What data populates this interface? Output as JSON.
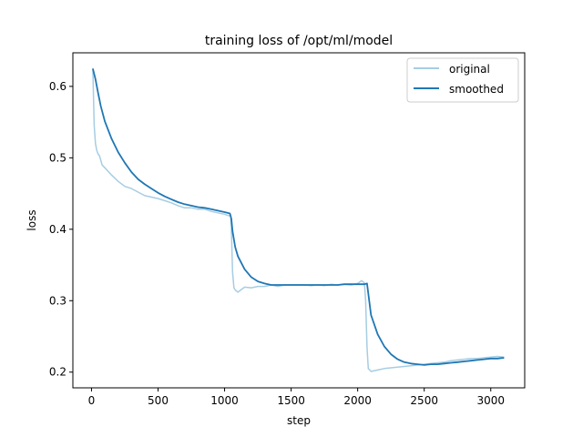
{
  "chart_data": {
    "type": "line",
    "title": "training loss of /opt/ml/model",
    "xlabel": "step",
    "ylabel": "loss",
    "xlim": [
      -140,
      3255
    ],
    "ylim": [
      0.178,
      0.647
    ],
    "xticks": [
      0,
      500,
      1000,
      1500,
      2000,
      2500,
      3000
    ],
    "yticks": [
      0.2,
      0.3,
      0.4,
      0.5,
      0.6
    ],
    "yticks_labels": [
      "0.2",
      "0.3",
      "0.4",
      "0.5",
      "0.6"
    ],
    "legend": {
      "placement": "top-right"
    },
    "grid": false,
    "series": [
      {
        "name": "original",
        "color": "#a6cde3",
        "x": [
          10,
          20,
          30,
          40,
          50,
          60,
          80,
          100,
          150,
          200,
          250,
          300,
          350,
          400,
          450,
          500,
          550,
          600,
          650,
          700,
          750,
          800,
          850,
          900,
          950,
          1000,
          1030,
          1045,
          1050,
          1060,
          1070,
          1080,
          1100,
          1150,
          1200,
          1250,
          1300,
          1350,
          1400,
          1450,
          1500,
          1550,
          1600,
          1650,
          1700,
          1750,
          1800,
          1850,
          1900,
          1950,
          2000,
          2030,
          2050,
          2060,
          2070,
          2080,
          2090,
          2100,
          2150,
          2200,
          2250,
          2300,
          2350,
          2400,
          2450,
          2500,
          2550,
          2600,
          2650,
          2700,
          2750,
          2800,
          2850,
          2900,
          2950,
          3000,
          3050,
          3100
        ],
        "y": [
          0.625,
          0.545,
          0.52,
          0.51,
          0.505,
          0.503,
          0.49,
          0.486,
          0.476,
          0.467,
          0.46,
          0.457,
          0.452,
          0.447,
          0.445,
          0.443,
          0.44,
          0.437,
          0.433,
          0.43,
          0.43,
          0.428,
          0.428,
          0.425,
          0.423,
          0.421,
          0.419,
          0.419,
          0.405,
          0.34,
          0.318,
          0.315,
          0.312,
          0.319,
          0.318,
          0.32,
          0.32,
          0.322,
          0.32,
          0.322,
          0.322,
          0.322,
          0.322,
          0.321,
          0.322,
          0.321,
          0.323,
          0.322,
          0.323,
          0.322,
          0.324,
          0.328,
          0.325,
          0.3,
          0.235,
          0.205,
          0.203,
          0.201,
          0.203,
          0.205,
          0.206,
          0.207,
          0.208,
          0.209,
          0.21,
          0.211,
          0.212,
          0.213,
          0.214,
          0.216,
          0.217,
          0.218,
          0.219,
          0.219,
          0.22,
          0.221,
          0.222,
          0.221
        ]
      },
      {
        "name": "smoothed",
        "color": "#1f77b4",
        "x": [
          10,
          30,
          50,
          70,
          100,
          150,
          200,
          250,
          300,
          350,
          400,
          450,
          500,
          550,
          600,
          650,
          700,
          750,
          800,
          850,
          900,
          950,
          1000,
          1040,
          1050,
          1060,
          1080,
          1100,
          1150,
          1200,
          1250,
          1300,
          1350,
          1400,
          1450,
          1500,
          1550,
          1600,
          1650,
          1700,
          1750,
          1800,
          1850,
          1900,
          1950,
          2000,
          2050,
          2070,
          2080,
          2090,
          2100,
          2150,
          2200,
          2250,
          2300,
          2350,
          2400,
          2450,
          2500,
          2550,
          2600,
          2650,
          2700,
          2750,
          2800,
          2850,
          2900,
          2950,
          3000,
          3050,
          3100
        ],
        "y": [
          0.625,
          0.61,
          0.59,
          0.572,
          0.551,
          0.527,
          0.508,
          0.493,
          0.48,
          0.47,
          0.463,
          0.457,
          0.451,
          0.446,
          0.442,
          0.438,
          0.435,
          0.433,
          0.431,
          0.43,
          0.428,
          0.426,
          0.424,
          0.422,
          0.415,
          0.397,
          0.375,
          0.362,
          0.344,
          0.333,
          0.327,
          0.324,
          0.322,
          0.322,
          0.322,
          0.322,
          0.322,
          0.322,
          0.322,
          0.322,
          0.322,
          0.322,
          0.322,
          0.323,
          0.323,
          0.323,
          0.323,
          0.324,
          0.31,
          0.295,
          0.28,
          0.253,
          0.236,
          0.225,
          0.218,
          0.214,
          0.212,
          0.211,
          0.21,
          0.211,
          0.211,
          0.212,
          0.213,
          0.214,
          0.215,
          0.216,
          0.217,
          0.218,
          0.219,
          0.219,
          0.22
        ]
      }
    ]
  }
}
